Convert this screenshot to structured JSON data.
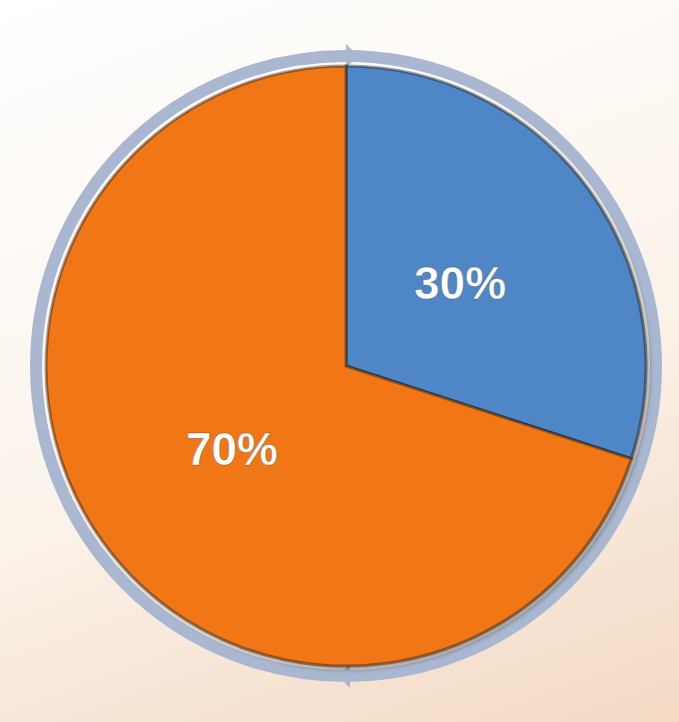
{
  "chart_data": {
    "type": "pie",
    "categories": [
      null,
      null
    ],
    "values": [
      30,
      70
    ],
    "value_labels": [
      "30%",
      "70%"
    ],
    "colors": [
      "#4f86c6",
      "#f07613"
    ],
    "data_labels": true
  }
}
